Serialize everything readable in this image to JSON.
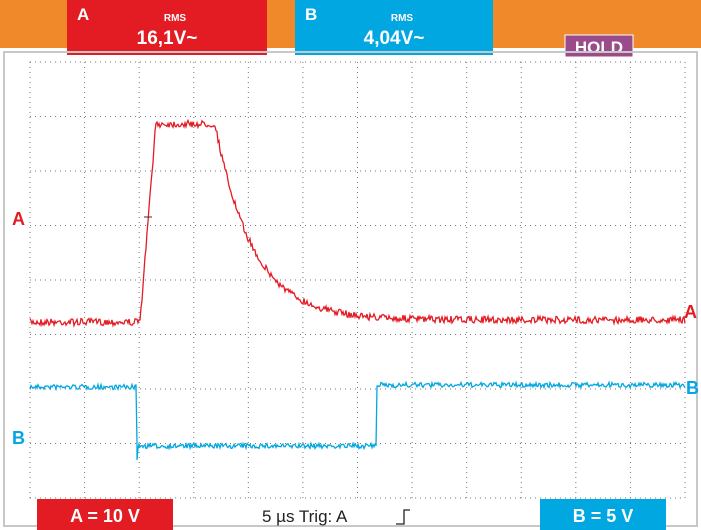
{
  "header": {
    "channel_a": {
      "label": "A",
      "mode": "RMS",
      "reading": "16,1V~"
    },
    "channel_b": {
      "label": "B",
      "mode": "RMS",
      "reading": "4,04V~"
    },
    "hold": "HOLD"
  },
  "trace_labels": {
    "left_a": "A",
    "left_b": "B",
    "right_a": "A",
    "right_b": "B"
  },
  "footer": {
    "a_scale": "A = 10 V",
    "timebase": "5 µs Trig: A",
    "b_scale": "B = 5 V"
  }
}
